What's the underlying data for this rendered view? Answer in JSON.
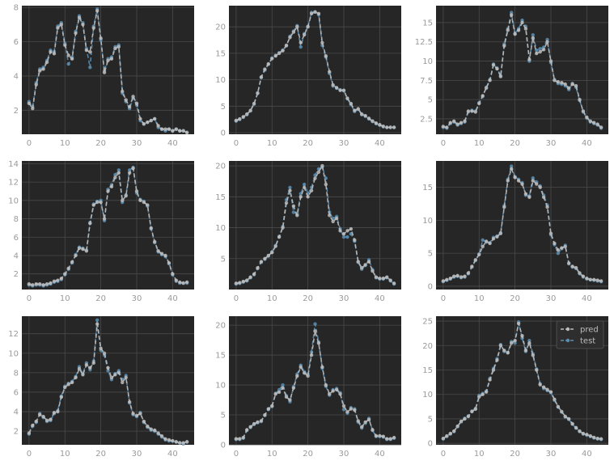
{
  "colors": {
    "background": "#262626",
    "grid": "#4a4a4a",
    "tick": "#9a9a9a",
    "pred": "#bdbdbd",
    "test": "#5b8db0"
  },
  "legend": {
    "labels": [
      "pred",
      "test"
    ],
    "placement": "top-right"
  },
  "chart_data": [
    {
      "type": "line",
      "xlim": [
        -2,
        46
      ],
      "ylim": [
        0.6,
        8.1
      ],
      "xticks": [
        0,
        10,
        20,
        30,
        40
      ],
      "yticks": [
        2,
        4,
        6,
        8
      ],
      "grid": true,
      "series": [
        {
          "name": "pred",
          "values": [
            2.4,
            2.1,
            3.5,
            4.3,
            4.4,
            4.8,
            5.4,
            5.3,
            6.8,
            7.0,
            5.8,
            5.2,
            5.0,
            6.5,
            7.4,
            7.0,
            5.5,
            5.4,
            6.8,
            7.8,
            6.2,
            4.2,
            4.9,
            5.0,
            5.6,
            5.7,
            3.1,
            2.6,
            2.2,
            2.8,
            2.4,
            1.5,
            1.2,
            1.3,
            1.4,
            1.5,
            1.1,
            0.9,
            0.9,
            0.9,
            0.8,
            0.9,
            0.8,
            0.8,
            0.7
          ]
        },
        {
          "name": "test",
          "values": [
            2.5,
            2.2,
            3.6,
            4.4,
            4.5,
            4.9,
            5.5,
            5.4,
            6.9,
            7.1,
            5.9,
            4.7,
            5.1,
            6.6,
            7.5,
            7.1,
            5.6,
            4.5,
            6.9,
            7.9,
            6.1,
            4.3,
            5.0,
            5.1,
            5.7,
            5.8,
            3.0,
            2.5,
            2.1,
            2.7,
            2.3,
            1.4,
            1.2,
            1.3,
            1.4,
            1.5,
            1.0,
            0.9,
            0.8,
            0.9,
            0.8,
            0.9,
            0.8,
            0.8,
            0.7
          ]
        }
      ]
    },
    {
      "type": "line",
      "xlim": [
        -2,
        46
      ],
      "ylim": [
        -0.3,
        24
      ],
      "xticks": [
        0,
        10,
        20,
        30,
        40
      ],
      "yticks": [
        0,
        5,
        10,
        15,
        20
      ],
      "grid": true,
      "series": [
        {
          "name": "pred",
          "values": [
            2.3,
            2.6,
            3.0,
            3.5,
            4.2,
            5.5,
            7.5,
            10.5,
            12.0,
            13.0,
            14.0,
            14.5,
            15.0,
            15.5,
            16.5,
            18.0,
            19.0,
            20.0,
            17.0,
            18.5,
            20.0,
            22.5,
            22.8,
            22.5,
            17.0,
            14.5,
            11.5,
            9.0,
            8.5,
            8.0,
            8.0,
            6.5,
            5.5,
            4.2,
            4.5,
            3.5,
            3.2,
            2.7,
            2.2,
            1.8,
            1.5,
            1.2,
            1.0,
            1.0,
            1.0
          ]
        },
        {
          "name": "test",
          "values": [
            2.2,
            2.5,
            2.9,
            3.4,
            4.1,
            5.4,
            7.4,
            10.4,
            11.8,
            12.9,
            14.1,
            14.6,
            15.1,
            15.6,
            16.4,
            18.2,
            19.2,
            20.2,
            16.2,
            18.7,
            20.1,
            22.7,
            22.8,
            22.3,
            16.5,
            14.3,
            11.2,
            8.8,
            8.4,
            8.1,
            7.9,
            6.4,
            5.3,
            4.0,
            4.4,
            3.4,
            3.1,
            2.6,
            2.1,
            1.7,
            1.4,
            1.1,
            1.0,
            1.0,
            1.0
          ]
        }
      ]
    },
    {
      "type": "line",
      "xlim": [
        -2,
        46
      ],
      "ylim": [
        0.5,
        17.2
      ],
      "xticks": [
        0,
        10,
        20,
        30,
        40
      ],
      "yticks": [
        2.5,
        5.0,
        7.5,
        10.0,
        12.5,
        15.0
      ],
      "grid": true,
      "series": [
        {
          "name": "pred",
          "values": [
            1.5,
            1.4,
            2.0,
            2.2,
            1.8,
            2.0,
            2.2,
            3.5,
            3.5,
            3.4,
            4.5,
            5.5,
            6.5,
            7.5,
            9.5,
            9.0,
            8.0,
            12.0,
            14.0,
            16.0,
            13.5,
            14.0,
            15.0,
            14.2,
            10.2,
            13.0,
            11.0,
            11.2,
            11.5,
            12.5,
            10.0,
            7.5,
            7.3,
            7.2,
            7.0,
            6.5,
            7.0,
            6.8,
            5.0,
            3.5,
            2.7,
            2.2,
            2.0,
            1.8,
            1.4
          ]
        },
        {
          "name": "test",
          "values": [
            1.4,
            1.3,
            1.9,
            2.1,
            1.7,
            1.9,
            2.1,
            3.4,
            3.6,
            3.5,
            4.6,
            5.4,
            6.6,
            7.6,
            9.6,
            9.1,
            8.1,
            12.2,
            14.2,
            16.3,
            13.6,
            14.2,
            15.3,
            14.5,
            10.0,
            13.4,
            11.4,
            11.6,
            11.8,
            12.8,
            9.8,
            7.6,
            7.1,
            7.0,
            6.8,
            6.3,
            7.1,
            6.6,
            4.9,
            3.4,
            2.6,
            2.1,
            1.9,
            1.7,
            1.3
          ]
        }
      ]
    },
    {
      "type": "line",
      "xlim": [
        -2,
        46
      ],
      "ylim": [
        0.3,
        14.3
      ],
      "xticks": [
        0,
        10,
        20,
        30,
        40
      ],
      "yticks": [
        2,
        4,
        6,
        8,
        10,
        12,
        14
      ],
      "grid": true,
      "series": [
        {
          "name": "pred",
          "values": [
            0.9,
            0.8,
            0.9,
            0.9,
            0.8,
            0.9,
            1.0,
            1.2,
            1.3,
            1.5,
            2.0,
            2.6,
            3.3,
            4.0,
            4.8,
            4.7,
            4.5,
            7.5,
            9.5,
            9.8,
            9.8,
            8.0,
            11.0,
            11.5,
            12.5,
            13.0,
            10.0,
            10.5,
            13.0,
            13.5,
            11.0,
            10.0,
            9.8,
            9.5,
            7.0,
            5.5,
            4.5,
            4.2,
            4.0,
            3.2,
            2.0,
            1.3,
            1.1,
            1.0,
            1.1
          ]
        },
        {
          "name": "test",
          "values": [
            0.8,
            0.7,
            0.8,
            0.8,
            0.7,
            0.8,
            0.9,
            1.1,
            1.2,
            1.4,
            1.9,
            2.5,
            3.2,
            4.1,
            4.9,
            4.8,
            4.6,
            7.6,
            9.6,
            9.9,
            10.0,
            7.8,
            11.2,
            11.7,
            12.8,
            13.3,
            9.8,
            10.6,
            13.3,
            13.6,
            10.8,
            10.1,
            9.9,
            9.4,
            6.9,
            5.4,
            4.4,
            4.1,
            3.9,
            3.1,
            1.9,
            1.2,
            1.0,
            1.0,
            1.0
          ]
        }
      ]
    },
    {
      "type": "line",
      "xlim": [
        -2,
        46
      ],
      "ylim": [
        0,
        20.8
      ],
      "xticks": [
        0,
        10,
        20,
        30,
        40
      ],
      "yticks": [
        5,
        10,
        15,
        20
      ],
      "grid": true,
      "series": [
        {
          "name": "pred",
          "values": [
            1.0,
            1.1,
            1.3,
            1.5,
            2.0,
            2.5,
            3.5,
            4.5,
            5.0,
            5.5,
            6.0,
            7.0,
            8.5,
            10.0,
            14.0,
            16.0,
            13.5,
            12.0,
            15.0,
            16.5,
            15.0,
            16.0,
            18.0,
            19.0,
            20.0,
            17.0,
            12.0,
            11.0,
            11.5,
            9.5,
            9.0,
            9.5,
            9.8,
            8.0,
            4.5,
            3.5,
            4.0,
            4.5,
            3.0,
            2.0,
            1.8,
            1.8,
            2.0,
            1.5,
            1.0
          ]
        },
        {
          "name": "test",
          "values": [
            0.9,
            1.0,
            1.2,
            1.4,
            1.9,
            2.4,
            3.4,
            4.4,
            4.9,
            5.4,
            6.1,
            7.1,
            8.6,
            10.2,
            14.5,
            16.5,
            12.5,
            12.2,
            15.5,
            17.0,
            15.5,
            16.5,
            18.5,
            19.5,
            19.8,
            18.0,
            12.5,
            11.5,
            11.8,
            9.8,
            8.5,
            8.5,
            9.0,
            7.8,
            4.4,
            3.3,
            3.9,
            4.8,
            3.2,
            1.9,
            1.7,
            1.7,
            1.9,
            1.4,
            0.9
          ]
        }
      ]
    },
    {
      "type": "line",
      "xlim": [
        -2,
        46
      ],
      "ylim": [
        -0.5,
        19
      ],
      "xticks": [
        0,
        10,
        20,
        30,
        40
      ],
      "yticks": [
        0,
        5,
        10,
        15
      ],
      "grid": true,
      "series": [
        {
          "name": "pred",
          "values": [
            0.8,
            1.0,
            1.2,
            1.5,
            1.6,
            1.4,
            1.5,
            2.0,
            3.0,
            4.0,
            4.8,
            6.0,
            6.8,
            6.5,
            7.2,
            7.5,
            8.0,
            12.0,
            16.0,
            17.8,
            16.5,
            16.0,
            15.5,
            14.0,
            13.5,
            16.0,
            15.5,
            15.0,
            13.5,
            12.0,
            8.0,
            6.5,
            5.5,
            5.8,
            6.0,
            3.5,
            3.0,
            2.8,
            2.0,
            1.5,
            1.2,
            1.0,
            1.0,
            0.9,
            0.8
          ]
        },
        {
          "name": "test",
          "values": [
            0.7,
            0.9,
            1.1,
            1.4,
            1.5,
            1.3,
            1.4,
            1.9,
            2.9,
            3.9,
            4.9,
            7.0,
            6.7,
            6.6,
            7.4,
            7.6,
            8.1,
            12.2,
            16.2,
            18.2,
            16.6,
            16.2,
            15.7,
            13.8,
            13.7,
            16.4,
            15.8,
            15.2,
            13.8,
            12.3,
            7.8,
            6.3,
            5.0,
            5.7,
            6.2,
            3.4,
            2.9,
            2.7,
            1.9,
            1.4,
            1.1,
            1.0,
            0.9,
            0.8,
            0.7
          ]
        }
      ]
    },
    {
      "type": "line",
      "xlim": [
        -2,
        46
      ],
      "ylim": [
        0.6,
        13.8
      ],
      "xticks": [
        0,
        10,
        20,
        30,
        40
      ],
      "yticks": [
        2,
        4,
        6,
        8,
        10,
        12
      ],
      "grid": true,
      "series": [
        {
          "name": "pred",
          "values": [
            1.8,
            2.6,
            3.0,
            3.7,
            3.5,
            3.1,
            3.2,
            3.9,
            4.0,
            5.5,
            6.5,
            6.8,
            7.0,
            7.5,
            8.4,
            7.8,
            8.8,
            8.5,
            9.0,
            13.0,
            10.5,
            10.0,
            8.5,
            7.5,
            7.8,
            8.0,
            7.0,
            7.5,
            5.0,
            3.8,
            3.6,
            3.8,
            3.0,
            2.5,
            2.2,
            2.1,
            1.8,
            1.5,
            1.2,
            1.1,
            1.0,
            0.9,
            0.8,
            0.8,
            0.9
          ]
        },
        {
          "name": "test",
          "values": [
            1.7,
            2.5,
            2.9,
            3.8,
            3.4,
            3.0,
            3.1,
            3.8,
            4.1,
            5.6,
            6.6,
            6.9,
            7.1,
            7.6,
            8.6,
            7.9,
            9.0,
            8.3,
            9.2,
            13.4,
            10.3,
            9.8,
            8.2,
            7.3,
            7.9,
            8.2,
            7.3,
            7.7,
            4.9,
            3.7,
            3.5,
            3.9,
            2.9,
            2.4,
            2.1,
            2.0,
            1.7,
            1.4,
            1.1,
            1.0,
            1.0,
            0.9,
            0.8,
            0.7,
            0.9
          ]
        }
      ]
    },
    {
      "type": "line",
      "xlim": [
        -2,
        46
      ],
      "ylim": [
        0,
        21.5
      ],
      "xticks": [
        0,
        10,
        20,
        30,
        40
      ],
      "yticks": [
        0,
        5,
        10,
        15,
        20
      ],
      "grid": true,
      "series": [
        {
          "name": "pred",
          "values": [
            1.0,
            1.0,
            1.2,
            2.5,
            3.0,
            3.5,
            3.8,
            4.0,
            5.0,
            6.0,
            6.5,
            8.5,
            8.8,
            9.5,
            8.0,
            7.5,
            9.5,
            11.5,
            13.0,
            12.0,
            11.5,
            15.0,
            19.0,
            17.0,
            13.0,
            10.0,
            8.5,
            9.0,
            9.2,
            8.5,
            6.5,
            5.5,
            6.0,
            5.8,
            4.0,
            3.0,
            3.8,
            4.2,
            2.5,
            1.5,
            1.5,
            1.4,
            1.0,
            1.0,
            1.2
          ]
        },
        {
          "name": "test",
          "values": [
            0.9,
            0.9,
            1.1,
            2.4,
            2.9,
            3.4,
            3.7,
            3.9,
            4.9,
            5.9,
            6.4,
            8.6,
            9.2,
            10.0,
            8.2,
            7.2,
            9.7,
            11.8,
            13.3,
            12.2,
            11.8,
            15.5,
            20.2,
            17.2,
            12.8,
            9.8,
            8.3,
            9.2,
            9.4,
            8.7,
            5.9,
            5.3,
            6.2,
            6.0,
            3.8,
            2.8,
            3.6,
            4.4,
            2.4,
            1.4,
            1.4,
            1.3,
            0.9,
            0.9,
            1.1
          ]
        }
      ]
    },
    {
      "type": "line",
      "xlim": [
        -2,
        46
      ],
      "ylim": [
        -0.3,
        26
      ],
      "xticks": [
        0,
        10,
        20,
        30,
        40
      ],
      "yticks": [
        0,
        5,
        10,
        15,
        20,
        25
      ],
      "grid": true,
      "series": [
        {
          "name": "pred",
          "values": [
            1.0,
            1.5,
            2.0,
            2.5,
            3.5,
            4.5,
            5.0,
            5.5,
            6.5,
            7.0,
            9.5,
            10.0,
            10.5,
            13.0,
            15.0,
            17.0,
            20.0,
            19.0,
            18.5,
            20.5,
            21.0,
            24.5,
            22.0,
            19.0,
            20.5,
            18.0,
            15.0,
            12.0,
            11.5,
            11.0,
            10.5,
            9.0,
            7.5,
            6.5,
            5.5,
            5.0,
            4.0,
            3.2,
            2.5,
            2.0,
            1.8,
            1.5,
            1.2,
            1.0,
            0.9
          ]
        },
        {
          "name": "test",
          "values": [
            0.9,
            1.4,
            1.9,
            2.4,
            3.4,
            4.4,
            5.1,
            5.6,
            6.6,
            7.1,
            9.8,
            10.2,
            10.7,
            13.3,
            15.3,
            17.3,
            20.2,
            18.8,
            18.6,
            20.8,
            20.5,
            24.8,
            21.5,
            18.8,
            21.0,
            18.3,
            15.2,
            12.2,
            11.2,
            10.8,
            10.4,
            8.8,
            7.4,
            6.4,
            5.4,
            4.9,
            3.9,
            3.1,
            2.4,
            1.9,
            1.7,
            1.4,
            1.1,
            0.9,
            0.8
          ]
        }
      ]
    }
  ]
}
